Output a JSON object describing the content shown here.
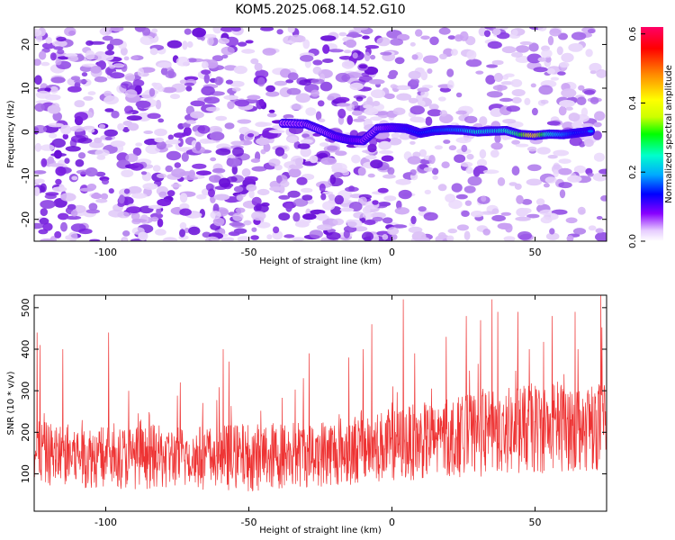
{
  "title": "KOM5.2025.068.14.52.G10",
  "colors": {
    "snr_line": "#ee3333",
    "track_core": "#dd1111",
    "noise": "#7a1fe0",
    "axis": "#000000"
  },
  "chart_data": [
    {
      "type": "heatmap",
      "xlabel": "Height of straight line (km)",
      "ylabel": "Frequency (Hz)",
      "xlim": [
        -125,
        75
      ],
      "ylim": [
        -25,
        24
      ],
      "xticks": [
        -100,
        -50,
        0,
        50
      ],
      "xtick_labels": [
        "-100",
        "-50",
        "0",
        "50"
      ],
      "yticks": [
        -20,
        -10,
        0,
        10,
        20
      ],
      "ytick_labels": [
        "-20",
        "-10",
        "0",
        "10",
        "20"
      ],
      "colorbar": {
        "label": "Normalized spectral amplitude",
        "range": [
          0,
          0.62
        ],
        "ticks": [
          0,
          0.2,
          0.4,
          0.6
        ],
        "tick_labels": [
          "0.0",
          "0.2",
          "0.4",
          "0.6"
        ],
        "colors": [
          "#ffffff",
          "#e6ccff",
          "#8800ff",
          "#0000ff",
          "#00aaff",
          "#00ffcc",
          "#00ff00",
          "#ccff00",
          "#ffff00",
          "#ff8800",
          "#ff0000",
          "#ff0066"
        ]
      },
      "track": {
        "description_values_km_hz": [
          [
            -38,
            2.0
          ],
          [
            -30,
            1.8
          ],
          [
            -25,
            0.5
          ],
          [
            -20,
            -1.0
          ],
          [
            -15,
            -1.8
          ],
          [
            -10,
            -2.0
          ],
          [
            -5,
            0.8
          ],
          [
            0,
            1.0
          ],
          [
            5,
            0.8
          ],
          [
            10,
            -0.3
          ],
          [
            15,
            0.3
          ],
          [
            20,
            0.5
          ],
          [
            25,
            0.4
          ],
          [
            30,
            0.0
          ],
          [
            35,
            0.2
          ],
          [
            40,
            0.3
          ],
          [
            45,
            -0.6
          ],
          [
            50,
            -0.8
          ],
          [
            55,
            -0.5
          ],
          [
            60,
            -0.6
          ],
          [
            65,
            -0.2
          ],
          [
            70,
            0.2
          ]
        ],
        "peak_amplitude": [
          0.12,
          0.13,
          0.12,
          0.14,
          0.17,
          0.14,
          0.12,
          0.16,
          0.2,
          0.22,
          0.24,
          0.26,
          0.28,
          0.34,
          0.32,
          0.35,
          0.42,
          0.62,
          0.35,
          0.28,
          0.22,
          0.2
        ]
      }
    },
    {
      "type": "line",
      "xlabel": "Height of straight line (km)",
      "ylabel": "SNR (10 * v/v)",
      "xlim": [
        -125,
        75
      ],
      "ylim": [
        10,
        530
      ],
      "xticks": [
        -100,
        -50,
        0,
        50
      ],
      "xtick_labels": [
        "-100",
        "-50",
        "0",
        "50"
      ],
      "yticks": [
        100,
        200,
        300,
        400,
        500
      ],
      "ytick_labels": [
        "100",
        "200",
        "300",
        "400",
        "500"
      ],
      "series": [
        {
          "baseline_x": [
            -125,
            -100,
            -75,
            -50,
            -25,
            0,
            25,
            50,
            75
          ],
          "baseline_y": [
            150,
            140,
            140,
            140,
            150,
            170,
            190,
            210,
            220
          ],
          "spread": [
            70,
            70,
            70,
            75,
            75,
            80,
            90,
            100,
            100
          ],
          "peaks": [
            [
              -124,
              440
            ],
            [
              -123,
              410
            ],
            [
              -115,
              400
            ],
            [
              -99,
              440
            ],
            [
              -92,
              300
            ],
            [
              -74,
              320
            ],
            [
              -59,
              400
            ],
            [
              -57,
              370
            ],
            [
              -31,
              330
            ],
            [
              -29,
              390
            ],
            [
              -15,
              380
            ],
            [
              -10,
              400
            ],
            [
              -7,
              460
            ],
            [
              4,
              520
            ],
            [
              8,
              390
            ],
            [
              19,
              430
            ],
            [
              26,
              480
            ],
            [
              31,
              470
            ],
            [
              35,
              520
            ],
            [
              37,
              490
            ],
            [
              44,
              490
            ],
            [
              48,
              400
            ],
            [
              56,
              480
            ],
            [
              64,
              490
            ],
            [
              65,
              400
            ],
            [
              73,
              530
            ]
          ]
        }
      ]
    }
  ]
}
